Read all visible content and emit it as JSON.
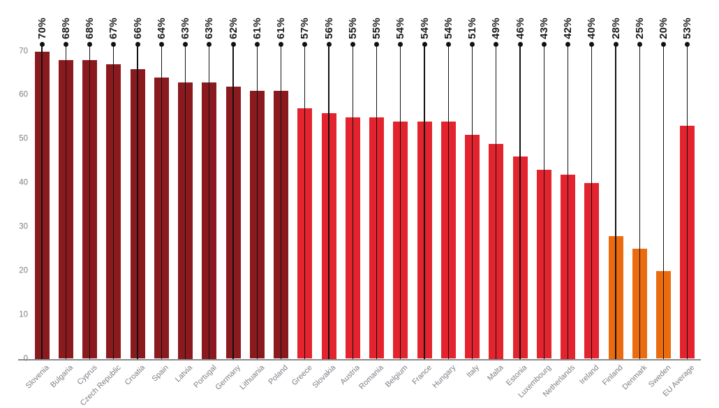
{
  "chart_data": {
    "type": "bar",
    "title": "",
    "xlabel": "",
    "ylabel": "",
    "categories": [
      "Slovenia",
      "Bulgaria",
      "Cyprus",
      "Czech Republic",
      "Croatia",
      "Spain",
      "Latvia",
      "Portugal",
      "Germany",
      "Lithuania",
      "Poland",
      "Greece",
      "Slovakia",
      "Austria",
      "Romania",
      "Belgium",
      "France",
      "Hungary",
      "Italy",
      "Malta",
      "Estonia",
      "Luxembourg",
      "Netherlands",
      "Ireland",
      "Finland",
      "Denmark",
      "Sweden",
      "EU Average"
    ],
    "values": [
      70,
      68,
      68,
      67,
      66,
      64,
      63,
      63,
      62,
      61,
      61,
      57,
      56,
      55,
      55,
      54,
      54,
      54,
      51,
      49,
      46,
      43,
      42,
      40,
      28,
      25,
      20,
      53
    ],
    "value_labels": [
      "70%",
      "68%",
      "68%",
      "67%",
      "66%",
      "64%",
      "63%",
      "63%",
      "62%",
      "61%",
      "61%",
      "57%",
      "56%",
      "55%",
      "55%",
      "54%",
      "54%",
      "54%",
      "51%",
      "49%",
      "46%",
      "43%",
      "42%",
      "40%",
      "28%",
      "25%",
      "20%",
      "53%"
    ],
    "bar_groups": [
      "dark_red",
      "dark_red",
      "dark_red",
      "dark_red",
      "dark_red",
      "dark_red",
      "dark_red",
      "dark_red",
      "dark_red",
      "dark_red",
      "dark_red",
      "red",
      "red",
      "red",
      "red",
      "red",
      "red",
      "red",
      "red",
      "red",
      "red",
      "red",
      "red",
      "red",
      "orange",
      "orange",
      "orange",
      "red"
    ],
    "palette": {
      "dark_red": "#8b1a1e",
      "red": "#e3242f",
      "orange": "#ea6c0f"
    },
    "annotation_style": "lollipop: black line from value dot above each bar down to baseline, bold value label rotated 90deg above dot",
    "line_color": "#111111",
    "dot_color": "#111111",
    "axis_line_color": "#8a8a8a",
    "y_tick_color": "#7f7f7f",
    "category_label_color": "#7e7e86",
    "y_ticks": [
      0,
      10,
      20,
      30,
      40,
      50,
      60,
      70
    ],
    "ylim": [
      0,
      70
    ],
    "grid": false,
    "legend": "none"
  }
}
